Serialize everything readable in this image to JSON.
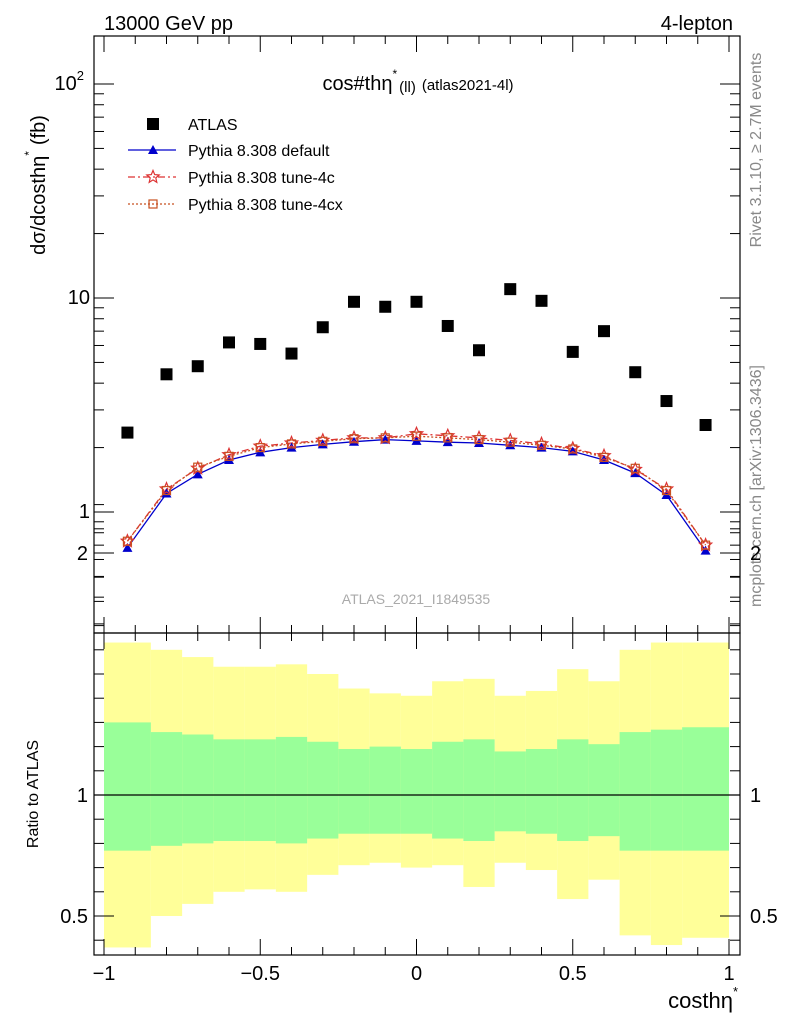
{
  "header": {
    "left": "13000 GeV pp",
    "right": "4-lepton"
  },
  "side_labels": {
    "rivet": "Rivet 3.1.10, ≥ 2.7M events",
    "mcplots": "mcplots.cern.ch [arXiv:1306.3436]"
  },
  "watermark": "ATLAS_2021_I1849535",
  "chart_data": [
    {
      "type": "scatter",
      "title": "cos#thη",
      "title_sup": "*",
      "title_sub": "(ll)",
      "title_suffix": "(atlas2021-4l)",
      "ylabel": "dσ/dcosthη",
      "ylabel_sup": "*",
      "ylabel_unit": "(fb)",
      "xlabel": "costhη",
      "xlabel_sup": "*",
      "yscale": "log",
      "xlim": [
        -1.0,
        1.0
      ],
      "ylim": [
        0.3,
        160
      ],
      "x_ticks": [
        -1,
        -0.5,
        0,
        0.5,
        1
      ],
      "x_tick_labels": [
        "−1",
        "−0.5",
        "0",
        "0.5",
        "1"
      ],
      "y_tick_labels": {
        "one": "1",
        "ten": "10",
        "hundred": "10",
        "hundred_exp": "2"
      },
      "legend_position": "top-left",
      "x": [
        -0.925,
        -0.8,
        -0.7,
        -0.6,
        -0.5,
        -0.4,
        -0.3,
        -0.2,
        -0.1,
        0.0,
        0.1,
        0.2,
        0.3,
        0.4,
        0.5,
        0.6,
        0.7,
        0.8,
        0.925
      ],
      "series": [
        {
          "name": "ATLAS",
          "marker": "square",
          "color": "#000000",
          "values": [
            2.35,
            4.4,
            4.8,
            6.2,
            6.1,
            5.5,
            7.3,
            9.6,
            9.1,
            9.6,
            7.4,
            5.7,
            11.0,
            9.7,
            5.6,
            7.0,
            4.5,
            3.3,
            2.55
          ]
        },
        {
          "name": "Pythia 8.308 default",
          "marker": "triangle",
          "color": "#0000cc",
          "values": [
            0.68,
            1.22,
            1.5,
            1.75,
            1.9,
            2.0,
            2.07,
            2.13,
            2.18,
            2.15,
            2.12,
            2.1,
            2.05,
            2.0,
            1.92,
            1.75,
            1.52,
            1.2,
            0.66
          ]
        },
        {
          "name": "Pythia 8.308 tune-4c",
          "marker": "star",
          "color": "#dd3333",
          "values": [
            0.73,
            1.28,
            1.6,
            1.85,
            2.03,
            2.1,
            2.16,
            2.22,
            2.22,
            2.32,
            2.27,
            2.22,
            2.16,
            2.08,
            1.98,
            1.83,
            1.58,
            1.28,
            0.7
          ]
        },
        {
          "name": "Pythia 8.308 tune-4cx",
          "marker": "open-square",
          "color": "#c85020",
          "values": [
            0.73,
            1.26,
            1.62,
            1.82,
            2.0,
            2.08,
            2.14,
            2.2,
            2.22,
            2.26,
            2.22,
            2.18,
            2.12,
            2.05,
            1.97,
            1.8,
            1.6,
            1.26,
            0.7
          ]
        }
      ]
    },
    {
      "type": "area",
      "ylabel": "Ratio to ATLAS",
      "xlim": [
        -1.0,
        1.0
      ],
      "ylim": [
        0.35,
        2.3
      ],
      "y_ticks": [
        0.5,
        1,
        2
      ],
      "y_tick_labels": [
        "0.5",
        "1",
        "2"
      ],
      "reference_line": 1.0,
      "bins": [
        -1.0,
        -0.85,
        -0.75,
        -0.65,
        -0.55,
        -0.45,
        -0.35,
        -0.25,
        -0.15,
        -0.05,
        0.05,
        0.15,
        0.25,
        0.35,
        0.45,
        0.55,
        0.65,
        0.75,
        0.85,
        1.0
      ],
      "series": [
        {
          "name": "stat",
          "color": "#99ff99",
          "upper": [
            1.3,
            1.26,
            1.25,
            1.23,
            1.23,
            1.24,
            1.22,
            1.19,
            1.2,
            1.19,
            1.22,
            1.23,
            1.18,
            1.19,
            1.23,
            1.21,
            1.26,
            1.27,
            1.28
          ],
          "lower": [
            0.77,
            0.79,
            0.8,
            0.81,
            0.81,
            0.8,
            0.82,
            0.84,
            0.84,
            0.84,
            0.82,
            0.81,
            0.85,
            0.84,
            0.81,
            0.83,
            0.77,
            0.77,
            0.77
          ]
        },
        {
          "name": "total",
          "color": "#ffff99",
          "upper": [
            1.63,
            1.6,
            1.57,
            1.53,
            1.53,
            1.54,
            1.5,
            1.44,
            1.42,
            1.41,
            1.47,
            1.48,
            1.41,
            1.43,
            1.52,
            1.47,
            1.6,
            1.63,
            1.63
          ],
          "lower": [
            0.37,
            0.5,
            0.55,
            0.6,
            0.61,
            0.6,
            0.67,
            0.71,
            0.72,
            0.7,
            0.71,
            0.62,
            0.72,
            0.69,
            0.57,
            0.65,
            0.42,
            0.38,
            0.41
          ]
        }
      ]
    }
  ]
}
